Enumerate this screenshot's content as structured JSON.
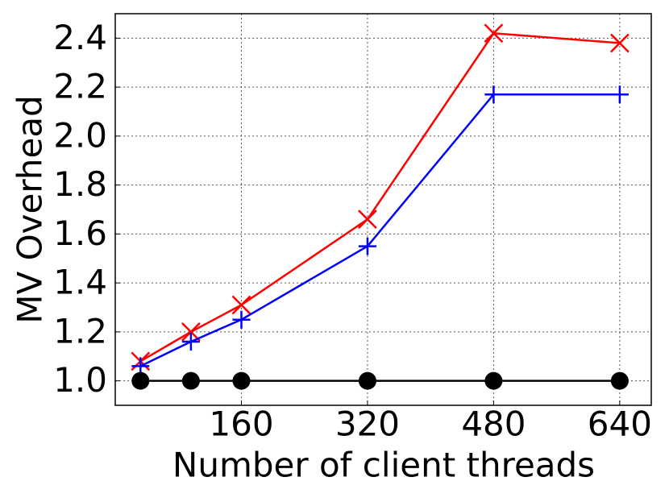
{
  "chart_data": {
    "type": "line",
    "xlabel": "Number of client threads",
    "ylabel": "MV Overhead",
    "x": [
      32,
      96,
      160,
      320,
      480,
      640
    ],
    "series": [
      {
        "color": "#ff0000",
        "marker": "x",
        "values": [
          1.08,
          1.2,
          1.31,
          1.66,
          2.42,
          2.38
        ]
      },
      {
        "color": "#0000ff",
        "marker": "+",
        "values": [
          1.06,
          1.16,
          1.25,
          1.55,
          2.17,
          2.17
        ]
      },
      {
        "color": "#000000",
        "marker": "o",
        "values": [
          1.0,
          1.0,
          1.0,
          1.0,
          1.0,
          1.0
        ]
      }
    ],
    "xlim": [
      0,
      680
    ],
    "xticks": [
      160,
      320,
      480,
      640
    ],
    "ylim": [
      0.9,
      2.5
    ],
    "yticks": [
      {
        "value": 1.0,
        "label": "1.0"
      },
      {
        "value": 1.2,
        "label": "1.2"
      },
      {
        "value": 1.4,
        "label": "1.4"
      },
      {
        "value": 1.6,
        "label": "1.6"
      },
      {
        "value": 1.8,
        "label": "1.8"
      },
      {
        "value": 2.0,
        "label": "2.0"
      },
      {
        "value": 2.2,
        "label": "2.2"
      },
      {
        "value": 2.4,
        "label": "2.4"
      }
    ],
    "grid": true
  }
}
